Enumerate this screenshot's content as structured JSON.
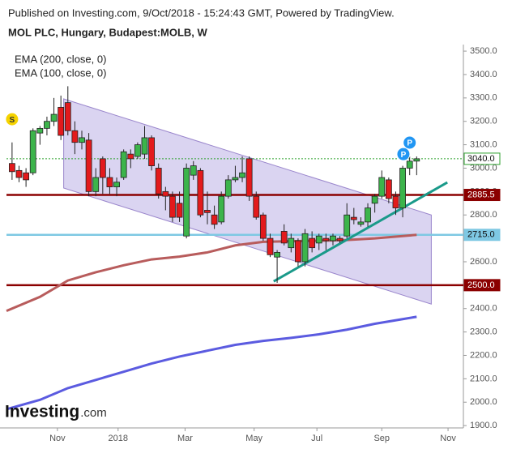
{
  "header": {
    "published": "Published on Investing.com, 9/Oct/2018 - 15:24:43 GMT, Powered by TradingView.",
    "title": "MOL PLC, Hungary, Budapest:MOLB, W"
  },
  "logo": {
    "name": "Investing",
    "suffix": ".com"
  },
  "chart_data": {
    "type": "candlestick",
    "x": [
      0,
      1,
      2,
      3,
      4,
      5,
      6,
      7,
      8,
      9,
      10,
      11,
      12,
      13,
      14,
      15,
      16,
      17,
      18,
      19,
      20,
      21,
      22,
      23,
      24,
      25,
      26,
      27,
      28,
      29,
      30,
      31,
      32,
      33,
      34,
      35,
      36,
      37,
      38,
      39,
      40,
      41,
      42,
      43,
      44,
      45,
      46,
      47,
      48,
      49,
      50,
      51,
      52,
      53,
      54,
      55,
      56,
      57,
      58
    ],
    "open": [
      3020,
      2990,
      2980,
      2980,
      3150,
      3170,
      3200,
      3260,
      3280,
      3160,
      3110,
      3120,
      2900,
      3040,
      2960,
      2920,
      2960,
      3060,
      3050,
      3060,
      3130,
      3000,
      2900,
      2880,
      2850,
      2710,
      2970,
      2990,
      2820,
      2800,
      2770,
      2880,
      2950,
      2960,
      3040,
      2880,
      2800,
      2700,
      2620,
      2730,
      2660,
      2690,
      2600,
      2700,
      2680,
      2700,
      2690,
      2700,
      2710,
      2790,
      2760,
      2770,
      2850,
      2880,
      2950,
      2880,
      2830,
      3000,
      3030
    ],
    "high": [
      3110,
      3010,
      3000,
      3170,
      3180,
      3220,
      3300,
      3310,
      3350,
      3200,
      3160,
      3150,
      3000,
      3050,
      3000,
      2960,
      3080,
      3080,
      3110,
      3180,
      3140,
      3020,
      2920,
      2900,
      2900,
      3020,
      3030,
      3000,
      2900,
      2840,
      2900,
      2970,
      3010,
      3050,
      3050,
      2900,
      2810,
      2720,
      2650,
      2760,
      2720,
      2700,
      2740,
      2730,
      2720,
      2720,
      2720,
      2710,
      2850,
      2830,
      2790,
      2850,
      2890,
      2990,
      2960,
      2900,
      3010,
      3050,
      3050
    ],
    "low": [
      2950,
      2940,
      2920,
      2970,
      3100,
      3140,
      3180,
      3120,
      3140,
      3060,
      3080,
      2880,
      2880,
      2890,
      2890,
      2880,
      2950,
      3000,
      3040,
      3040,
      2990,
      2870,
      2820,
      2770,
      2770,
      2700,
      2950,
      2790,
      2760,
      2740,
      2760,
      2870,
      2940,
      2940,
      2860,
      2780,
      2690,
      2620,
      2510,
      2670,
      2640,
      2580,
      2580,
      2640,
      2650,
      2650,
      2670,
      2680,
      2700,
      2760,
      2750,
      2750,
      2810,
      2870,
      2850,
      2800,
      2790,
      2970,
      2970
    ],
    "close": [
      2985,
      2960,
      2950,
      3160,
      3170,
      3200,
      3230,
      3140,
      3160,
      3110,
      3130,
      2900,
      2960,
      2960,
      2920,
      2940,
      3070,
      3040,
      3100,
      3130,
      3010,
      2890,
      2880,
      2790,
      2790,
      3000,
      3010,
      2800,
      2810,
      2760,
      2880,
      2950,
      2960,
      2980,
      2880,
      2790,
      2700,
      2630,
      2640,
      2680,
      2700,
      2600,
      2720,
      2660,
      2710,
      2690,
      2710,
      2690,
      2800,
      2780,
      2770,
      2830,
      2880,
      2960,
      2870,
      2830,
      3000,
      3030,
      3040
    ],
    "up_color": "#3cb44b",
    "down_color": "#e31a1c",
    "series": [
      {
        "name": "EMA (200, close, 0)",
        "color": "#b85c5c",
        "x": [
          -0.8,
          4,
          8,
          12,
          16,
          20,
          24,
          28,
          32,
          36,
          40,
          44,
          48,
          52,
          56,
          58
        ],
        "values": [
          2390,
          2450,
          2520,
          2555,
          2585,
          2610,
          2622,
          2640,
          2670,
          2685,
          2688,
          2690,
          2693,
          2700,
          2710,
          2715
        ]
      },
      {
        "name": "EMA (100, close, 0)",
        "color": "#5b5be0",
        "x": [
          -0.8,
          4,
          8,
          12,
          16,
          20,
          24,
          28,
          32,
          36,
          40,
          44,
          48,
          52,
          56,
          58
        ],
        "values": [
          1970,
          2010,
          2060,
          2095,
          2130,
          2165,
          2195,
          2220,
          2245,
          2262,
          2275,
          2290,
          2310,
          2335,
          2355,
          2365
        ]
      }
    ],
    "levels": {
      "values": [
        2885.5,
        2715,
        2500,
        3040
      ],
      "value_labels": [
        "2885.5",
        "2715.0",
        "2500.0",
        "3040.0"
      ],
      "colors": [
        "#8b0000",
        "#7ec8e3",
        "#8b0000",
        "#2ca02c"
      ]
    },
    "channel": {
      "x": [
        7.4,
        60.1
      ],
      "upper": [
        3296,
        2800
      ],
      "lower": [
        2915,
        2419
      ]
    },
    "trend_line": {
      "x": [
        37.5,
        62.4
      ],
      "values": [
        2516,
        2939
      ],
      "color": "#1a9a8a"
    },
    "annotations": [
      {
        "text": "S",
        "x": 0,
        "y": 3209,
        "color": "#f5d300"
      },
      {
        "text": "P",
        "x": 56.1,
        "y": 3060,
        "color": "#2196f3"
      },
      {
        "text": "P",
        "x": 57.0,
        "y": 3109,
        "color": "#2196f3"
      }
    ],
    "xlim": [
      -0.8,
      64.7
    ],
    "ylim": [
      1890,
      3528
    ],
    "xticks": [
      {
        "value": 6.5,
        "label": "Nov"
      },
      {
        "value": 15.2,
        "label": "2018"
      },
      {
        "value": 24.8,
        "label": "Mar"
      },
      {
        "value": 34.7,
        "label": "May"
      },
      {
        "value": 43.7,
        "label": "Jul"
      },
      {
        "value": 53.0,
        "label": "Sep"
      },
      {
        "value": 62.5,
        "label": "Nov"
      }
    ],
    "yticks": [
      {
        "value": 1900,
        "label": "1900.0"
      },
      {
        "value": 2000,
        "label": "2000.0"
      },
      {
        "value": 2100,
        "label": "2100.0"
      },
      {
        "value": 2200,
        "label": "2200.0"
      },
      {
        "value": 2300,
        "label": "2300.0"
      },
      {
        "value": 2400,
        "label": "2400.0"
      },
      {
        "value": 2500,
        "label": "2500.0"
      },
      {
        "value": 2600,
        "label": "2600.0"
      },
      {
        "value": 2700,
        "label": "2700.0"
      },
      {
        "value": 2800,
        "label": "2800.0"
      },
      {
        "value": 2900,
        "label": "2900.0"
      },
      {
        "value": 3000,
        "label": "3000.0"
      },
      {
        "value": 3100,
        "label": "3100.0"
      },
      {
        "value": 3200,
        "label": "3200.0"
      },
      {
        "value": 3300,
        "label": "3300.0"
      },
      {
        "value": 3400,
        "label": "3400.0"
      },
      {
        "value": 3500,
        "label": "3500.0"
      }
    ],
    "grid": false
  }
}
